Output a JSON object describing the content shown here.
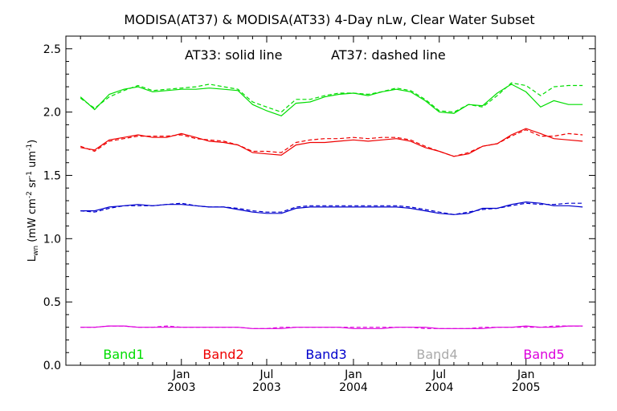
{
  "chart_data": {
    "type": "line",
    "title": "MODISA(AT37) & MODISA(AT33) 4-Day nLw, Clear Water Subset",
    "annotation": {
      "left": "AT33: solid line",
      "right": "AT37: dashed line"
    },
    "ylabel": {
      "main": "L",
      "sub": "wn",
      "units_1": " (mW cm",
      "sup_1": "-2",
      "units_2": " sr",
      "sup_2": "-1",
      "units_3": " um",
      "sup_3": "-1",
      "units_4": ")"
    },
    "ylim": [
      0,
      2.6
    ],
    "y_ticks": [
      "0.0",
      "0.5",
      "1.0",
      "1.5",
      "2.0",
      "2.5"
    ],
    "x_ticks": [
      {
        "month": "Jan",
        "year": "2003"
      },
      {
        "month": "Jul",
        "year": "2003"
      },
      {
        "month": "Jan",
        "year": "2004"
      },
      {
        "month": "Jul",
        "year": "2004"
      },
      {
        "month": "Jan",
        "year": "2005"
      }
    ],
    "x": [
      "2002-06",
      "2002-07",
      "2002-08",
      "2002-09",
      "2002-10",
      "2002-11",
      "2002-12",
      "2003-01",
      "2003-02",
      "2003-03",
      "2003-04",
      "2003-05",
      "2003-06",
      "2003-07",
      "2003-08",
      "2003-09",
      "2003-10",
      "2003-11",
      "2003-12",
      "2004-01",
      "2004-02",
      "2004-03",
      "2004-04",
      "2004-05",
      "2004-06",
      "2004-07",
      "2004-08",
      "2004-09",
      "2004-10",
      "2004-11",
      "2004-12",
      "2005-01",
      "2005-02",
      "2005-03",
      "2005-04",
      "2005-05"
    ],
    "grid": false,
    "series": [
      {
        "name": "Band1",
        "color": "#00dd00",
        "solid": [
          2.12,
          2.02,
          2.14,
          2.18,
          2.2,
          2.16,
          2.17,
          2.18,
          2.18,
          2.19,
          2.18,
          2.17,
          2.06,
          2.01,
          1.97,
          2.07,
          2.08,
          2.12,
          2.14,
          2.15,
          2.13,
          2.16,
          2.18,
          2.16,
          2.09,
          2.0,
          1.99,
          2.06,
          2.05,
          2.15,
          2.22,
          2.16,
          2.04,
          2.09,
          2.06,
          2.06
        ],
        "dashed": [
          2.11,
          2.03,
          2.12,
          2.17,
          2.21,
          2.17,
          2.18,
          2.19,
          2.2,
          2.22,
          2.2,
          2.18,
          2.08,
          2.04,
          2.0,
          2.1,
          2.1,
          2.13,
          2.15,
          2.15,
          2.14,
          2.16,
          2.19,
          2.17,
          2.1,
          2.01,
          2.0,
          2.06,
          2.04,
          2.13,
          2.23,
          2.21,
          2.13,
          2.2,
          2.21,
          2.21
        ]
      },
      {
        "name": "Band2",
        "color": "#ee0000",
        "solid": [
          1.72,
          1.7,
          1.78,
          1.8,
          1.82,
          1.8,
          1.8,
          1.83,
          1.8,
          1.77,
          1.76,
          1.74,
          1.68,
          1.67,
          1.66,
          1.74,
          1.76,
          1.76,
          1.77,
          1.78,
          1.77,
          1.78,
          1.79,
          1.77,
          1.72,
          1.69,
          1.65,
          1.67,
          1.73,
          1.75,
          1.82,
          1.87,
          1.83,
          1.79,
          1.78,
          1.77
        ],
        "dashed": [
          1.73,
          1.69,
          1.77,
          1.79,
          1.81,
          1.81,
          1.81,
          1.82,
          1.79,
          1.78,
          1.77,
          1.74,
          1.69,
          1.69,
          1.68,
          1.76,
          1.78,
          1.79,
          1.79,
          1.8,
          1.79,
          1.8,
          1.8,
          1.78,
          1.73,
          1.69,
          1.65,
          1.68,
          1.73,
          1.75,
          1.81,
          1.86,
          1.81,
          1.81,
          1.83,
          1.82
        ]
      },
      {
        "name": "Band3",
        "color": "#0000cc",
        "solid": [
          1.22,
          1.22,
          1.25,
          1.26,
          1.27,
          1.26,
          1.27,
          1.27,
          1.26,
          1.25,
          1.25,
          1.23,
          1.21,
          1.2,
          1.2,
          1.24,
          1.25,
          1.25,
          1.25,
          1.25,
          1.25,
          1.25,
          1.25,
          1.24,
          1.22,
          1.2,
          1.19,
          1.2,
          1.24,
          1.24,
          1.27,
          1.29,
          1.28,
          1.26,
          1.26,
          1.25
        ],
        "dashed": [
          1.22,
          1.21,
          1.24,
          1.26,
          1.26,
          1.26,
          1.27,
          1.28,
          1.26,
          1.25,
          1.25,
          1.24,
          1.22,
          1.21,
          1.21,
          1.25,
          1.26,
          1.26,
          1.26,
          1.26,
          1.26,
          1.26,
          1.26,
          1.25,
          1.23,
          1.21,
          1.19,
          1.21,
          1.23,
          1.24,
          1.26,
          1.28,
          1.27,
          1.27,
          1.28,
          1.28
        ]
      },
      {
        "name": "Band4",
        "color": "#aaaaaa",
        "solid": [],
        "dashed": []
      },
      {
        "name": "Band5",
        "color": "#dd00dd",
        "solid": [
          0.3,
          0.3,
          0.31,
          0.31,
          0.3,
          0.3,
          0.3,
          0.3,
          0.3,
          0.3,
          0.3,
          0.3,
          0.29,
          0.29,
          0.29,
          0.3,
          0.3,
          0.3,
          0.3,
          0.29,
          0.29,
          0.29,
          0.3,
          0.3,
          0.3,
          0.29,
          0.29,
          0.29,
          0.29,
          0.3,
          0.3,
          0.31,
          0.3,
          0.3,
          0.31,
          0.31
        ],
        "dashed": [
          0.3,
          0.3,
          0.31,
          0.31,
          0.3,
          0.3,
          0.31,
          0.3,
          0.3,
          0.3,
          0.3,
          0.3,
          0.29,
          0.29,
          0.3,
          0.3,
          0.3,
          0.3,
          0.3,
          0.3,
          0.3,
          0.3,
          0.3,
          0.3,
          0.29,
          0.29,
          0.29,
          0.29,
          0.3,
          0.3,
          0.3,
          0.3,
          0.3,
          0.31,
          0.31,
          0.31
        ]
      }
    ]
  }
}
